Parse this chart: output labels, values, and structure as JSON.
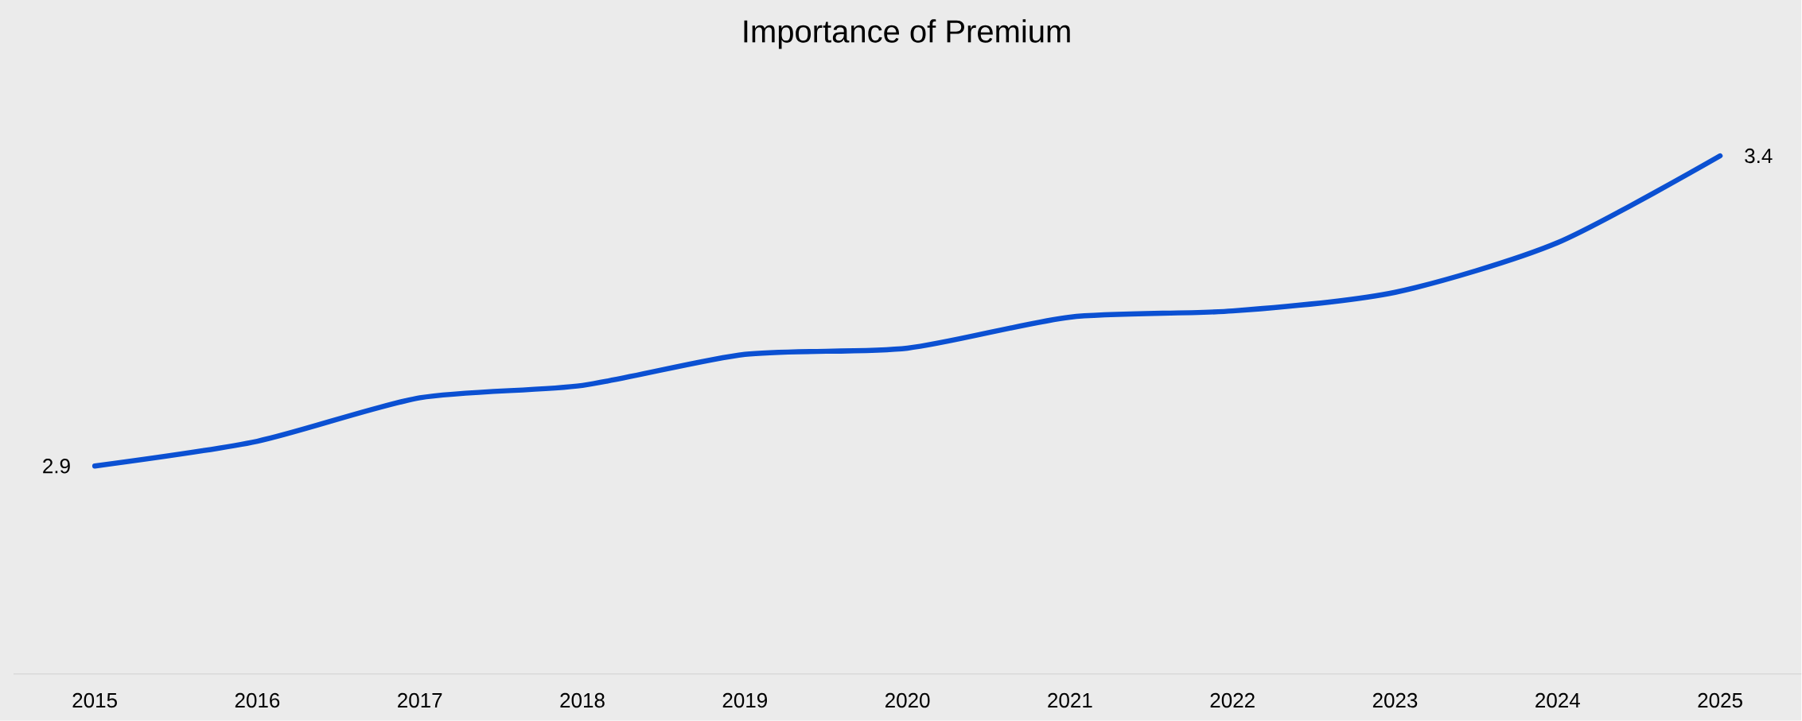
{
  "chart_data": {
    "type": "line",
    "title": "Importance of Premium",
    "categories": [
      "2015",
      "2016",
      "2017",
      "2018",
      "2019",
      "2020",
      "2021",
      "2022",
      "2023",
      "2024",
      "2025"
    ],
    "values": [
      2.9,
      2.94,
      3.01,
      3.03,
      3.08,
      3.09,
      3.14,
      3.15,
      3.18,
      3.26,
      3.4
    ],
    "value_labels": [
      "2.9",
      null,
      null,
      null,
      null,
      null,
      null,
      null,
      null,
      null,
      "3.4"
    ],
    "color": "#0b50d2",
    "grid": false,
    "marker": "none",
    "line_style": "solid"
  }
}
